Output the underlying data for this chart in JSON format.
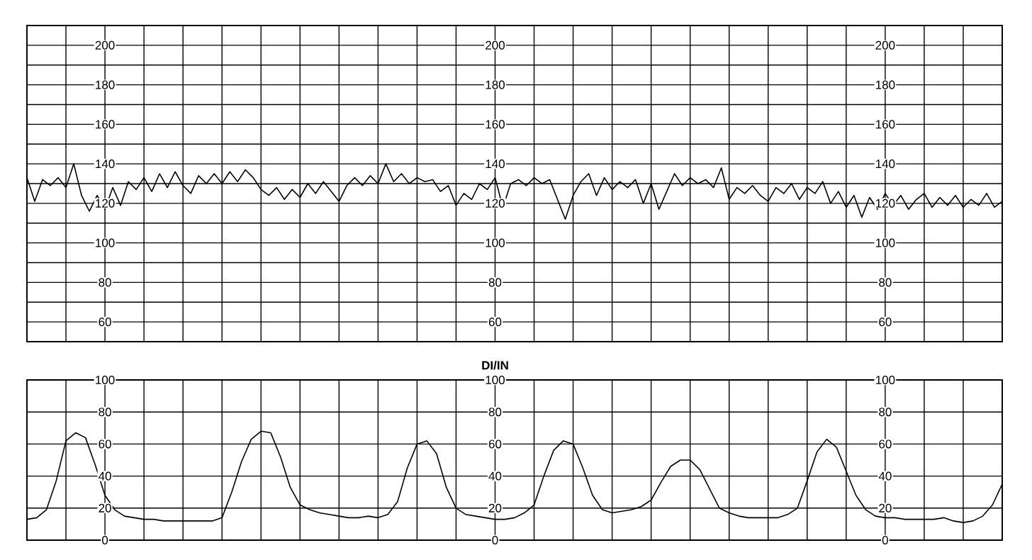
{
  "chart_data": [
    {
      "type": "line",
      "color": "#000000",
      "grid": true,
      "tick_labels": "y",
      "ylim": [
        50,
        210
      ],
      "y2lim": [
        50,
        210
      ],
      "y3lim": [
        50,
        210
      ],
      "y2ticks": [
        60,
        80,
        100,
        120,
        140,
        160,
        180,
        200
      ],
      "y3ticks": [
        60,
        80,
        100,
        120,
        140,
        160,
        180,
        200
      ],
      "yticks": [
        {
          "value": 50,
          "label": null
        },
        60,
        {
          "value": 70,
          "label": null
        },
        80,
        {
          "value": 90,
          "label": null
        },
        100,
        {
          "value": 110,
          "label": null
        },
        120,
        {
          "value": 130,
          "label": null
        },
        140,
        {
          "value": 150,
          "label": null
        },
        160,
        {
          "value": 170,
          "label": null
        },
        180,
        {
          "value": 190,
          "label": null
        },
        200,
        {
          "value": 210,
          "label": null
        }
      ],
      "categories": [
        null,
        null,
        null,
        null,
        null,
        null,
        null,
        null,
        null,
        null,
        null,
        null,
        null,
        null,
        null,
        null,
        null,
        null,
        null,
        null,
        null,
        null,
        null,
        null,
        null,
        null,
        null,
        null,
        null,
        null,
        null,
        null,
        null,
        null,
        null,
        null,
        null,
        null,
        null,
        null,
        null,
        null,
        null,
        null,
        null,
        null,
        null,
        null,
        null,
        null,
        null,
        null,
        null,
        null,
        null,
        null,
        null,
        null,
        null,
        null,
        null,
        null,
        null,
        null,
        null,
        null,
        null,
        null,
        null,
        null,
        null,
        null,
        null,
        null,
        null,
        null,
        null,
        null,
        null,
        null,
        null,
        null,
        null,
        null,
        null,
        null,
        null,
        null,
        null,
        null,
        null,
        null,
        null,
        null,
        null,
        null,
        null,
        null,
        null,
        null,
        null,
        null,
        null,
        null,
        null,
        null,
        null,
        null,
        null,
        null,
        null,
        null,
        null,
        null,
        null,
        null,
        null,
        null,
        null,
        null,
        null,
        null,
        null,
        null,
        null,
        null
      ],
      "values": [
        133,
        121,
        132,
        129,
        133,
        128,
        140,
        124,
        116,
        124,
        117,
        128,
        119,
        131,
        127,
        133,
        126,
        135,
        128,
        136,
        129,
        125,
        134,
        130,
        135,
        130,
        136,
        131,
        137,
        133,
        127,
        124,
        128,
        122,
        127,
        123,
        130,
        125,
        131,
        126,
        121,
        129,
        133,
        129,
        134,
        130,
        140,
        131,
        135,
        130,
        133,
        131,
        132,
        126,
        129,
        119,
        125,
        122,
        130,
        127,
        133,
        118,
        130,
        132,
        129,
        133,
        130,
        132,
        122,
        112,
        124,
        131,
        135,
        124,
        133,
        127,
        131,
        128,
        132,
        120,
        130,
        117,
        126,
        135,
        129,
        133,
        130,
        132,
        128,
        138,
        122,
        128,
        125,
        129,
        124,
        121,
        128,
        125,
        130,
        122,
        128,
        125,
        131,
        120,
        126,
        118,
        124,
        113,
        123,
        117,
        125,
        119,
        124,
        117,
        122,
        125,
        118,
        123,
        119,
        124,
        118,
        122,
        119,
        125,
        118,
        121
      ]
    },
    {
      "type": "line",
      "color": "#000000",
      "grid": true,
      "tick_labels": "y",
      "y2label": "DI/IN",
      "ylim": [
        0,
        100
      ],
      "y2lim": [
        0,
        100
      ],
      "y3lim": [
        0,
        100
      ],
      "y2ticks": [
        0,
        20,
        40,
        60,
        80,
        100
      ],
      "y3ticks": [
        0,
        20,
        40,
        60,
        80,
        100
      ],
      "yticks": [
        0,
        20,
        40,
        60,
        80,
        100
      ],
      "categories": [
        null,
        null,
        null,
        null,
        null,
        null,
        null,
        null,
        null,
        null,
        null,
        null,
        null,
        null,
        null,
        null,
        null,
        null,
        null,
        null,
        null,
        null,
        null,
        null,
        null,
        null,
        null,
        null,
        null,
        null,
        null,
        null,
        null,
        null,
        null,
        null,
        null,
        null,
        null,
        null,
        null,
        null,
        null,
        null,
        null,
        null,
        null,
        null,
        null,
        null,
        null,
        null,
        null,
        null,
        null,
        null,
        null,
        null,
        null,
        null,
        null,
        null,
        null,
        null,
        null,
        null,
        null,
        null,
        null,
        null,
        null,
        null,
        null,
        null,
        null,
        null,
        null,
        null,
        null,
        null,
        null,
        null,
        null,
        null,
        null,
        null,
        null,
        null,
        null,
        null,
        null,
        null,
        null,
        null,
        null,
        null,
        null,
        null,
        null,
        null,
        null
      ],
      "values": [
        13,
        14,
        19,
        37,
        62,
        67,
        64,
        47,
        28,
        19,
        15,
        14,
        13,
        13,
        12,
        12,
        12,
        12,
        12,
        12,
        14,
        30,
        49,
        63,
        68,
        67,
        52,
        33,
        22,
        19,
        17,
        16,
        15,
        14,
        14,
        15,
        14,
        16,
        24,
        45,
        60,
        62,
        54,
        33,
        20,
        16,
        15,
        14,
        13,
        13,
        14,
        17,
        22,
        40,
        56,
        62,
        60,
        45,
        28,
        19,
        17,
        18,
        19,
        21,
        25,
        36,
        46,
        50,
        50,
        44,
        32,
        20,
        17,
        15,
        14,
        14,
        14,
        14,
        16,
        20,
        37,
        55,
        63,
        58,
        43,
        28,
        19,
        15,
        14,
        14,
        13,
        13,
        13,
        13,
        14,
        12,
        11,
        12,
        15,
        22,
        35
      ]
    }
  ]
}
